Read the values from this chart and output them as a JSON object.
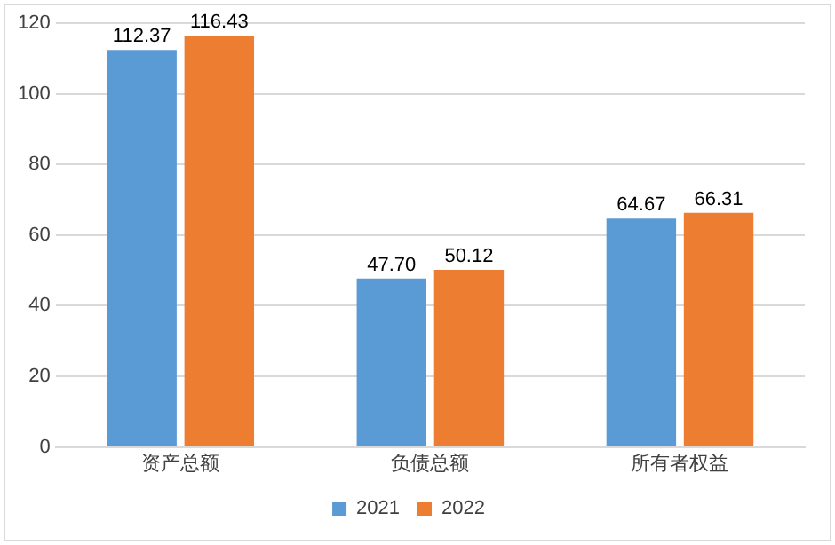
{
  "chart_data": {
    "type": "bar",
    "categories": [
      "资产总额",
      "负债总额",
      "所有者权益"
    ],
    "series": [
      {
        "name": "2021",
        "color": "#5b9bd5",
        "values": [
          112.37,
          47.7,
          64.67
        ],
        "value_labels": [
          "112.37",
          "47.70",
          "64.67"
        ]
      },
      {
        "name": "2022",
        "color": "#ed7d31",
        "values": [
          116.43,
          50.12,
          66.31
        ],
        "value_labels": [
          "116.43",
          "50.12",
          "66.31"
        ]
      }
    ],
    "ylim": [
      0,
      120
    ],
    "yticks": [
      0,
      20,
      40,
      60,
      80,
      100,
      120
    ],
    "grid": "y",
    "legend": "bottom"
  }
}
